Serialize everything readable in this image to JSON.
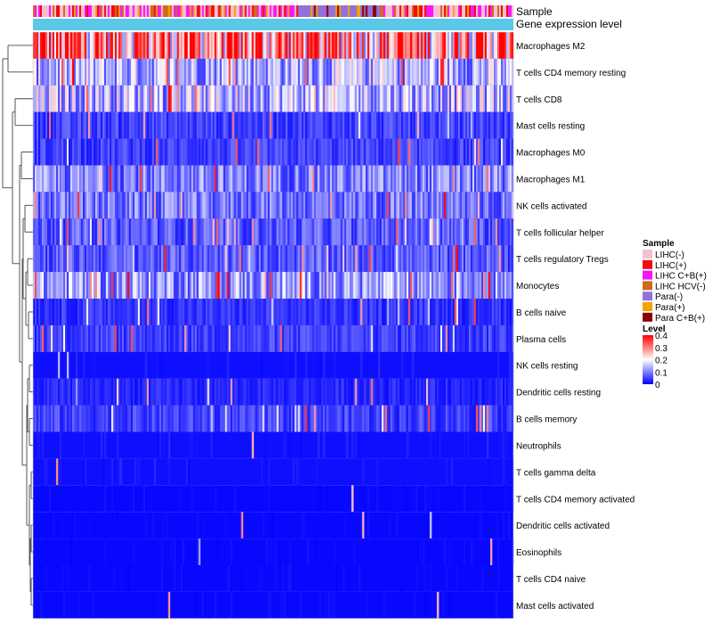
{
  "chart_data": {
    "type": "heatmap",
    "annotation_rows": [
      "Sample",
      "Gene expression level"
    ],
    "rows": [
      "Macrophages M2",
      "T cells CD4 memory resting",
      "T cells CD8",
      "Mast cells resting",
      "Macrophages M0",
      "Macrophages M1",
      "NK cells activated",
      "T cells follicular helper",
      "T cells regulatory  Tregs",
      "Monocytes",
      "B cells naive",
      "Plasma cells",
      "NK cells resting",
      "Dendritic cells resting",
      "B cells memory",
      "Neutrophils",
      "T cells gamma delta",
      "T cells CD4 memory activated",
      "Dendritic cells activated",
      "Eosinophils",
      "T cells CD4 naive",
      "Mast cells activated"
    ],
    "row_mean_levels": [
      0.3,
      0.14,
      0.15,
      0.05,
      0.05,
      0.1,
      0.09,
      0.07,
      0.07,
      0.12,
      0.04,
      0.05,
      0.02,
      0.03,
      0.05,
      0.02,
      0.02,
      0.01,
      0.01,
      0.01,
      0.01,
      0.01
    ],
    "n_columns": 270,
    "sample_legend": {
      "title": "Sample",
      "entries": [
        {
          "label": "LIHC(-)",
          "color": "#f7bfcd"
        },
        {
          "label": "LIHC(+)",
          "color": "#f00c0c"
        },
        {
          "label": "LIHC C+B(+)",
          "color": "#f815f8"
        },
        {
          "label": "LIHC HCV(-)",
          "color": "#d2691e"
        },
        {
          "label": "Para(-)",
          "color": "#9370db"
        },
        {
          "label": "Para(+)",
          "color": "#f5a200"
        },
        {
          "label": "Para C+B(+)",
          "color": "#8b0000"
        }
      ]
    },
    "level_legend": {
      "title": "Level",
      "ticks": [
        "0.4",
        "0.3",
        "0.2",
        "0.1",
        "0"
      ],
      "colors": [
        "#0000ff",
        "#ffffff",
        "#ff0000"
      ],
      "range": [
        0,
        0.4
      ]
    },
    "gene_expression_color": "#5bc8e8"
  }
}
